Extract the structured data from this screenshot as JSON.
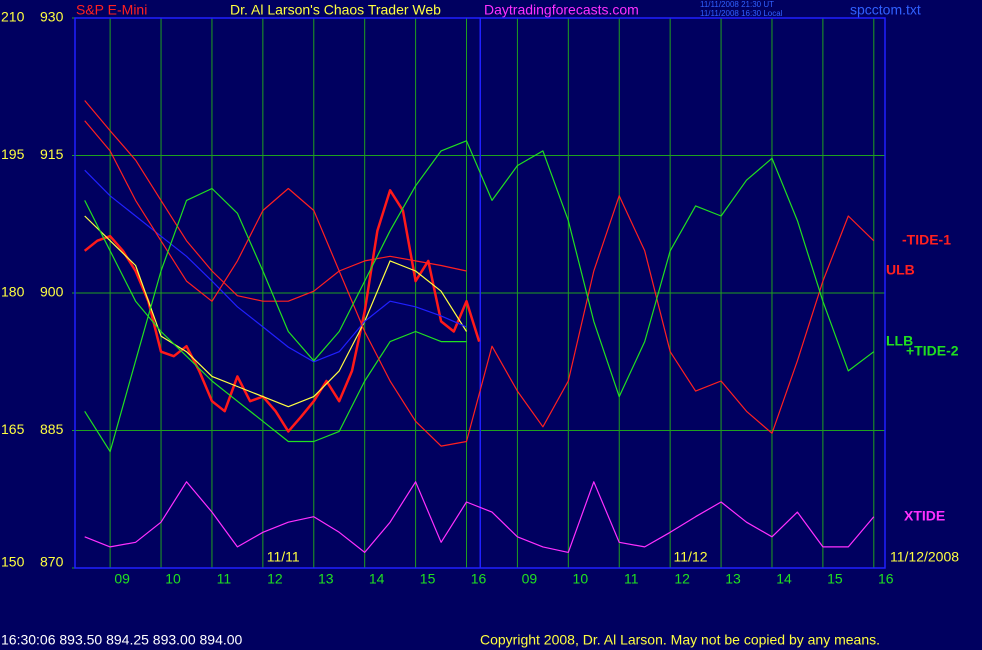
{
  "chart_data": {
    "type": "line",
    "instrument": "S&P E-Mini",
    "title": "Dr. Al Larson's Chaos Trader Web",
    "site": "Daytradingforecasts.com",
    "timestamps": [
      "11/11/2008 21:30 UT",
      "11/11/2008 16:30 Local"
    ],
    "file": "spcctom.txt",
    "xlim": [
      -0.69,
      15.22
    ],
    "xticks": [
      {
        "value": 0,
        "label": "09"
      },
      {
        "value": 1,
        "label": "10"
      },
      {
        "value": 2,
        "label": "11"
      },
      {
        "value": 3,
        "label": "12"
      },
      {
        "value": 4,
        "label": "13"
      },
      {
        "value": 5,
        "label": "14"
      },
      {
        "value": 6,
        "label": "15"
      },
      {
        "value": 7,
        "label": "16"
      },
      {
        "value": 8,
        "label": "09"
      },
      {
        "value": 9,
        "label": "10"
      },
      {
        "value": 10,
        "label": "11"
      },
      {
        "value": 11,
        "label": "12"
      },
      {
        "value": 12,
        "label": "13"
      },
      {
        "value": 13,
        "label": "14"
      },
      {
        "value": 14,
        "label": "15"
      },
      {
        "value": 15,
        "label": "16"
      }
    ],
    "ylim": [
      150,
      210
    ],
    "yticks": [
      150,
      165,
      180,
      195,
      210
    ],
    "y2lim": [
      870,
      930
    ],
    "y2ticks": [
      870,
      885,
      900,
      915,
      930
    ],
    "grid": true,
    "current_time_x": 7.27,
    "annotations": [
      {
        "x": 3.4,
        "text": "11/11"
      },
      {
        "x": 11.4,
        "text": "11/12"
      }
    ],
    "end_date": "11/12/2008",
    "series": [
      {
        "color": "#ff1a1a",
        "axis": "y2",
        "x": [
          -0.5,
          -0.25,
          0,
          0.25,
          0.5,
          0.75,
          1,
          1.25,
          1.5,
          1.75,
          2,
          2.25,
          2.5,
          2.75,
          3,
          3.25,
          3.5,
          3.75,
          4,
          4.25,
          4.5,
          4.75,
          5,
          5.25,
          5.5,
          5.75,
          6,
          6.25,
          6.5,
          6.75,
          7,
          7.25
        ],
        "values": [
          904.6,
          905.7,
          906.2,
          904.6,
          902.4,
          899.1,
          893.6,
          893.1,
          894.2,
          891.5,
          888.2,
          887.1,
          890.9,
          888.2,
          888.7,
          887.1,
          884.9,
          886.5,
          888.2,
          890.4,
          888.2,
          891.5,
          898.0,
          906.8,
          911.2,
          909.0,
          901.3,
          903.5,
          896.9,
          895.8,
          899.1,
          894.7
        ]
      },
      {
        "color": "#ffff40",
        "axis": "y2",
        "x": [
          -0.5,
          0,
          0.5,
          1,
          1.5,
          2,
          2.5,
          3,
          3.5,
          4,
          4.5,
          5,
          5.5,
          6,
          6.5,
          7
        ],
        "values": [
          908.4,
          905.7,
          903.0,
          895.3,
          893.6,
          890.9,
          889.8,
          888.7,
          887.6,
          888.7,
          891.5,
          896.9,
          903.5,
          902.4,
          900.2,
          895.8
        ]
      },
      {
        "color": "#2020ff",
        "axis": "y2",
        "x": [
          -0.5,
          0,
          0.5,
          1,
          1.5,
          2,
          2.5,
          3,
          3.5,
          4,
          4.5,
          5,
          5.5,
          6,
          6.5,
          7
        ],
        "values": [
          913.4,
          910.6,
          908.4,
          906.2,
          904.0,
          901.3,
          898.5,
          896.3,
          894.1,
          892.5,
          893.6,
          896.9,
          899.1,
          898.5,
          897.5,
          896.3
        ]
      },
      {
        "name": "ULB",
        "color": "#ff2020",
        "axis": "y2",
        "x": [
          -0.5,
          0,
          0.5,
          1,
          1.5,
          2,
          2.5,
          3,
          3.5,
          4,
          4.5,
          5,
          5.5,
          6,
          6.5,
          7
        ],
        "values": [
          921.0,
          917.7,
          914.5,
          910.1,
          905.7,
          902.4,
          899.7,
          899.1,
          899.1,
          900.2,
          902.4,
          903.5,
          904.0,
          903.5,
          903.0,
          902.4
        ]
      },
      {
        "name": "LLB",
        "color": "#20e020",
        "axis": "y2",
        "x": [
          -0.5,
          0,
          0.5,
          1,
          1.5,
          2,
          2.5,
          3,
          3.5,
          4,
          4.5,
          5,
          5.5,
          6,
          6.5,
          7
        ],
        "values": [
          910.1,
          904.6,
          899.1,
          895.8,
          893.1,
          890.4,
          888.2,
          886.0,
          883.8,
          883.8,
          884.9,
          890.4,
          894.7,
          895.8,
          894.7,
          894.7
        ]
      },
      {
        "name": "-TIDE-1",
        "color": "#ff2020",
        "x": [
          -0.5,
          0,
          0.5,
          1,
          1.5,
          2,
          2.5,
          3,
          3.5,
          4,
          4.5,
          5,
          5.5,
          6,
          6.5,
          7,
          7.5,
          8,
          8.5,
          9,
          9.5,
          10,
          10.5,
          11,
          11.5,
          12,
          12.5,
          13,
          13.5,
          14,
          14.5,
          15
        ],
        "values": [
          198.8,
          195.5,
          190.1,
          185.7,
          181.3,
          179.1,
          183.5,
          189.0,
          191.4,
          189.0,
          182.4,
          175.8,
          170.4,
          166.0,
          163.3,
          163.8,
          174.2,
          169.3,
          165.4,
          170.4,
          182.4,
          190.6,
          184.6,
          173.6,
          169.3,
          170.4,
          167.1,
          164.7,
          172.6,
          181.3,
          188.4,
          185.7
        ]
      },
      {
        "name": "+TIDE-2",
        "color": "#20e020",
        "x": [
          -0.5,
          0,
          0.5,
          1,
          1.5,
          2,
          2.5,
          3,
          3.5,
          4,
          4.5,
          5,
          5.5,
          6,
          6.5,
          7,
          7.5,
          8,
          8.5,
          9,
          9.5,
          10,
          10.5,
          11,
          11.5,
          12,
          12.5,
          13,
          13.5,
          14,
          14.5,
          15
        ],
        "values": [
          167.1,
          162.7,
          172.6,
          182.4,
          190.1,
          191.4,
          188.7,
          182.4,
          175.8,
          172.6,
          175.8,
          181.3,
          186.8,
          191.7,
          195.5,
          196.6,
          190.1,
          193.9,
          195.5,
          187.9,
          176.9,
          168.7,
          174.7,
          184.6,
          189.5,
          188.4,
          192.3,
          194.7,
          187.9,
          179.1,
          171.5,
          173.6
        ]
      },
      {
        "name": "XTIDE",
        "color": "#ff30ff",
        "x": [
          -0.5,
          0,
          0.5,
          1,
          1.5,
          2,
          2.5,
          3,
          3.5,
          4,
          4.5,
          5,
          5.5,
          6,
          6.5,
          7,
          7.5,
          8,
          8.5,
          9,
          9.5,
          10,
          10.5,
          11,
          11.5,
          12,
          12.5,
          13,
          13.5,
          14,
          14.5,
          15
        ],
        "values": [
          153.4,
          152.3,
          152.8,
          155.0,
          159.4,
          156.1,
          152.3,
          153.9,
          155.0,
          155.6,
          153.9,
          151.7,
          155.0,
          159.4,
          152.8,
          157.2,
          156.1,
          153.4,
          152.3,
          151.7,
          159.4,
          152.8,
          152.3,
          153.9,
          155.6,
          157.2,
          155.0,
          153.4,
          156.1,
          152.3,
          152.3,
          155.6
        ]
      }
    ],
    "status": "16:30:06 893.50 894.25 893.00 894.00",
    "copyright": "Copyright 2008, Dr. Al Larson. May not be copied by any means."
  }
}
